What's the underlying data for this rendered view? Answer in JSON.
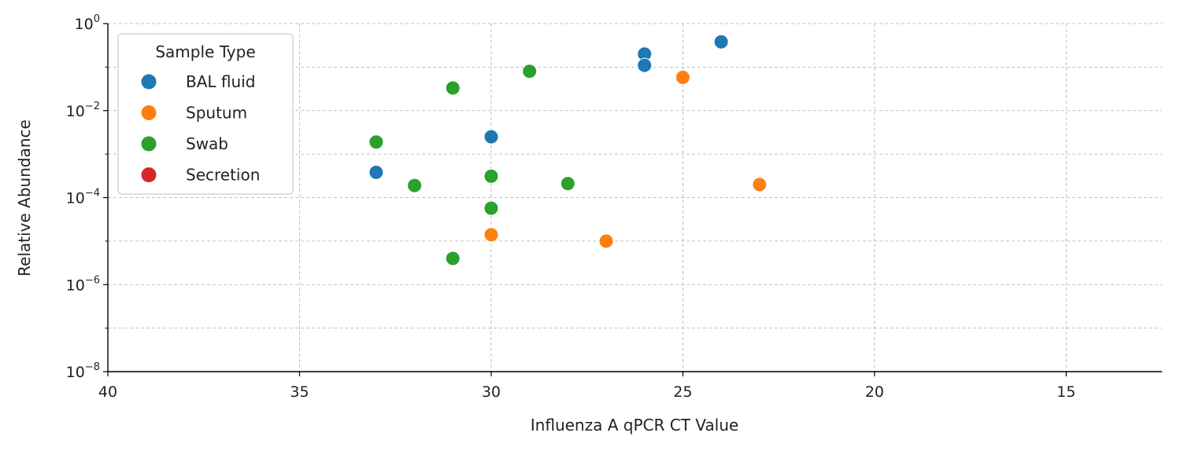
{
  "chart_data": {
    "type": "scatter",
    "xlabel": "Influenza A qPCR CT Value",
    "ylabel": "Relative Abundance",
    "x_axis": {
      "range": [
        40,
        12.5
      ],
      "reversed": true,
      "ticks": [
        40,
        35,
        30,
        25,
        20,
        15
      ]
    },
    "y_axis": {
      "scale": "log",
      "range": [
        1e-08,
        1
      ],
      "major_ticks_exp": [
        -8,
        -6,
        -4,
        -2,
        0
      ],
      "tick_base": "10"
    },
    "grid": true,
    "legend": {
      "title": "Sample Type",
      "placement": "top-left",
      "entries": [
        "BAL fluid",
        "Sputum",
        "Swab",
        "Secretion"
      ]
    },
    "series": [
      {
        "name": "BAL fluid",
        "color": "#1f77b4",
        "points": [
          [
            24,
            0.38
          ],
          [
            26,
            0.2
          ],
          [
            26,
            0.11
          ],
          [
            30,
            0.0025
          ],
          [
            33,
            0.00038
          ]
        ]
      },
      {
        "name": "Sputum",
        "color": "#ff7f0e",
        "points": [
          [
            25,
            0.058
          ],
          [
            23,
            0.0002
          ],
          [
            30,
            1.4e-05
          ],
          [
            27,
            1e-05
          ]
        ]
      },
      {
        "name": "Swab",
        "color": "#2ca02c",
        "points": [
          [
            29,
            0.08
          ],
          [
            31,
            0.033
          ],
          [
            33,
            0.0019
          ],
          [
            30,
            0.00031
          ],
          [
            32,
            0.00019
          ],
          [
            28,
            0.00021
          ],
          [
            30,
            5.7e-05
          ],
          [
            31,
            4e-06
          ]
        ]
      },
      {
        "name": "Secretion",
        "color": "#d62728",
        "points": []
      }
    ]
  }
}
